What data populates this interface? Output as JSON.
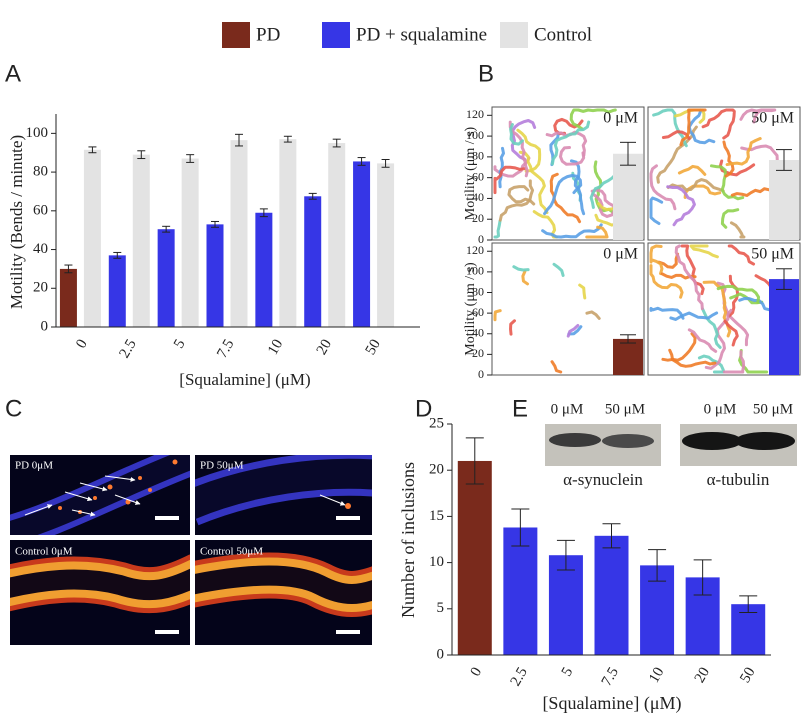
{
  "chart_data": [
    {
      "type": "bar",
      "panel": "A",
      "categories": [
        "0",
        "2.5",
        "5",
        "7.5",
        "10",
        "20",
        "50"
      ],
      "series": [
        {
          "name": "PD",
          "color": "#7a2a1c",
          "values": [
            30,
            null,
            null,
            null,
            null,
            null,
            null
          ],
          "errors": [
            2,
            null,
            null,
            null,
            null,
            null,
            null
          ]
        },
        {
          "name": "PD + squalamine",
          "color": "#3636e6",
          "values": [
            null,
            37,
            50.5,
            53,
            59,
            67.5,
            85.5
          ],
          "errors": [
            null,
            1.5,
            1.5,
            1.5,
            2,
            1.5,
            2
          ]
        },
        {
          "name": "Control",
          "color": "#e3e3e3",
          "values": [
            91.5,
            89,
            87,
            96.5,
            97,
            95,
            84.5
          ],
          "errors": [
            1.5,
            2,
            2,
            3,
            1.5,
            2,
            2
          ]
        }
      ],
      "ylim": [
        0,
        110
      ],
      "yticks": [
        0,
        20,
        40,
        60,
        80,
        100
      ],
      "ylabel": "Motility (Bends / minute)",
      "xlabel": "[Squalamine]  (μM)"
    },
    {
      "type": "bar",
      "panel": "B",
      "label": "0 μM",
      "values": [
        83
      ],
      "errors": [
        11
      ],
      "color": "#e3e3e3",
      "ylim": [
        0,
        128
      ],
      "yticks": [
        0,
        20,
        40,
        60,
        80,
        100,
        120
      ],
      "ylabel": "Motility (μm / s)"
    },
    {
      "type": "bar",
      "label": "50 μM",
      "values": [
        77
      ],
      "errors": [
        10
      ],
      "color": "#e3e3e3",
      "ylim": [
        0,
        128
      ]
    },
    {
      "type": "bar",
      "label": "0 μM",
      "values": [
        35
      ],
      "errors": [
        4
      ],
      "color": "#7a2a1c",
      "ylim": [
        0,
        128
      ],
      "yticks": [
        0,
        20,
        40,
        60,
        80,
        100,
        120
      ],
      "ylabel": "Motility (μm / s)"
    },
    {
      "type": "bar",
      "label": "50 μM",
      "values": [
        93
      ],
      "errors": [
        10
      ],
      "color": "#3636e6",
      "ylim": [
        0,
        128
      ]
    },
    {
      "type": "bar",
      "panel": "D",
      "categories": [
        "0",
        "2.5",
        "5",
        "7.5",
        "10",
        "20",
        "50"
      ],
      "values": [
        21,
        13.8,
        10.8,
        12.9,
        9.7,
        8.4,
        5.5
      ],
      "errors": [
        2.5,
        2,
        1.6,
        1.3,
        1.7,
        1.9,
        0.9
      ],
      "colors": [
        "#7a2a1c",
        "#3636e6",
        "#3636e6",
        "#3636e6",
        "#3636e6",
        "#3636e6",
        "#3636e6"
      ],
      "ylim": [
        0,
        25
      ],
      "yticks": [
        0,
        5,
        10,
        15,
        20,
        25
      ],
      "ylabel": "Number of inclusions",
      "xlabel": "[Squalamine]  (μM)"
    }
  ],
  "panel_c": {
    "label": "C",
    "images": [
      "PD 0μM",
      "PD 50μM",
      "Control 0μM",
      "Control 50μM"
    ]
  },
  "panel_e": {
    "label": "E",
    "lanes": [
      "0 μM",
      "50 μM",
      "0 μM",
      "50 μM"
    ],
    "blots": [
      "α-synuclein",
      "α-tubulin"
    ]
  }
}
